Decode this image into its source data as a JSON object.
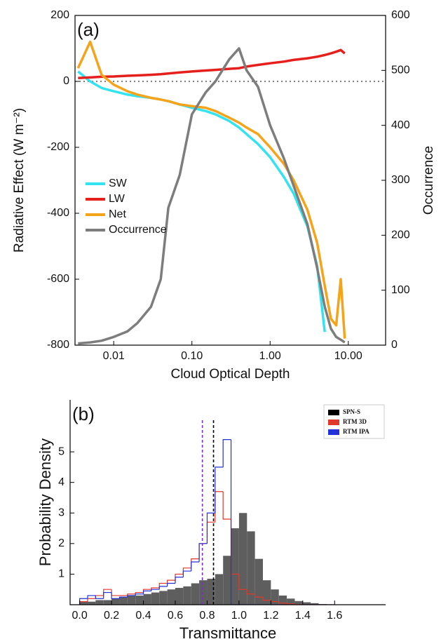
{
  "chart_data": [
    {
      "type": "line",
      "panel_label": "(a)",
      "xlabel": "Cloud Optical Depth",
      "ylabel": "Radiative Effect (W m⁻²)",
      "y2label": "Occurrence",
      "xscale": "log",
      "xlim": [
        0.0032,
        30
      ],
      "xticks": [
        0.01,
        {
          "value": 0.1,
          "label": "0.10"
        },
        {
          "value": 1,
          "label": "1.00"
        },
        {
          "value": 10,
          "label": "10.00"
        }
      ],
      "ylim": [
        -800,
        200
      ],
      "yticks": [
        -800,
        -600,
        -400,
        -200,
        0,
        200
      ],
      "y2lim": [
        0,
        600
      ],
      "y2ticks": [
        0,
        100,
        200,
        300,
        400,
        500,
        600
      ],
      "hline": 0,
      "x": [
        0.0035,
        0.005,
        0.007,
        0.01,
        0.015,
        0.02,
        0.03,
        0.04,
        0.05,
        0.07,
        0.1,
        0.15,
        0.2,
        0.3,
        0.4,
        0.5,
        0.7,
        1.0,
        1.5,
        2,
        3,
        4,
        5,
        6,
        7,
        8,
        9
      ],
      "series": [
        {
          "name": "SW",
          "color": "#33e3ef",
          "values": [
            30,
            0,
            -20,
            -30,
            -40,
            -45,
            -50,
            -55,
            -60,
            -70,
            -80,
            -90,
            -100,
            -120,
            -140,
            -160,
            -190,
            -230,
            -290,
            -340,
            -440,
            -560,
            -760,
            null,
            null,
            null,
            null
          ]
        },
        {
          "name": "LW",
          "color": "#e5201c",
          "values": [
            10,
            12,
            14,
            15,
            17,
            18,
            20,
            22,
            24,
            27,
            30,
            33,
            35,
            38,
            40,
            45,
            50,
            55,
            60,
            65,
            70,
            75,
            80,
            85,
            90,
            95,
            85
          ]
        },
        {
          "name": "Net",
          "color": "#f5a31a",
          "values": [
            40,
            120,
            20,
            -10,
            -30,
            -40,
            -50,
            -55,
            -60,
            -70,
            -75,
            -80,
            -90,
            -110,
            -125,
            -140,
            -160,
            -200,
            -250,
            -300,
            -390,
            -490,
            -620,
            -720,
            -740,
            -600,
            -780
          ]
        },
        {
          "name": "Occurrence",
          "color": "#7d7d7d",
          "axis": "y2",
          "values": [
            3,
            5,
            8,
            15,
            25,
            40,
            70,
            120,
            250,
            310,
            420,
            460,
            480,
            520,
            540,
            500,
            470,
            400,
            340,
            290,
            220,
            140,
            70,
            30,
            15,
            10,
            5
          ]
        }
      ]
    },
    {
      "type": "histogram",
      "panel_label": "(b)",
      "xlabel": "Transmittance",
      "ylabel": "Probability Density",
      "xlim": [
        -0.06,
        1.92
      ],
      "xticks": [
        {
          "value": 0,
          "label": "0.0"
        },
        0.2,
        0.4,
        0.6,
        0.8,
        {
          "value": 1,
          "label": "1.0"
        },
        1.2,
        1.4,
        1.6
      ],
      "ylim": [
        0,
        6.7
      ],
      "yticks": [
        1,
        2,
        3,
        4,
        5
      ],
      "bins": [
        0,
        0.05,
        0.1,
        0.15,
        0.2,
        0.25,
        0.3,
        0.35,
        0.4,
        0.45,
        0.5,
        0.55,
        0.6,
        0.65,
        0.7,
        0.75,
        0.8,
        0.85,
        0.9,
        0.95,
        1.0,
        1.05,
        1.1,
        1.15,
        1.2,
        1.25,
        1.3,
        1.35,
        1.4,
        1.45,
        1.5,
        1.55,
        1.6
      ],
      "series": [
        {
          "name": "SPN-S",
          "color": "#5e5e5e",
          "histtype": "bar",
          "values": [
            0.1,
            0.1,
            0.15,
            0.15,
            0.2,
            0.25,
            0.3,
            0.3,
            0.35,
            0.4,
            0.45,
            0.5,
            0.55,
            0.6,
            0.7,
            0.8,
            0.85,
            1.0,
            1.6,
            2.5,
            3.0,
            2.4,
            1.5,
            0.8,
            0.5,
            0.3,
            0.2,
            0.12,
            0.08,
            0.05,
            0.02,
            0
          ]
        },
        {
          "name": "RTM 3D",
          "color": "#e0392b",
          "histtype": "step",
          "values": [
            0.1,
            0.2,
            0.3,
            0.5,
            0.3,
            0.3,
            0.35,
            0.4,
            0.5,
            0.55,
            0.7,
            0.8,
            1.0,
            1.2,
            1.5,
            2.0,
            2.7,
            3.7,
            2.8,
            1.0,
            0.5,
            0.35,
            0.25,
            0.15,
            0.1,
            0.05,
            0.03,
            0.01,
            0,
            0,
            0,
            0
          ]
        },
        {
          "name": "RTM IPA",
          "color": "#2332d6",
          "histtype": "step",
          "values": [
            0.2,
            0.3,
            0.2,
            0.4,
            0.2,
            0.25,
            0.3,
            0.35,
            0.45,
            0.5,
            0.6,
            0.7,
            0.9,
            1.1,
            1.4,
            2.0,
            3.0,
            4.5,
            5.4,
            0,
            0,
            0,
            0,
            0,
            0,
            0,
            0,
            0,
            0,
            0,
            0,
            0
          ]
        }
      ],
      "vlines": [
        {
          "value": 0.77,
          "color": "#7b2fbe"
        },
        {
          "value": 0.84,
          "color": "#000000"
        }
      ]
    }
  ]
}
